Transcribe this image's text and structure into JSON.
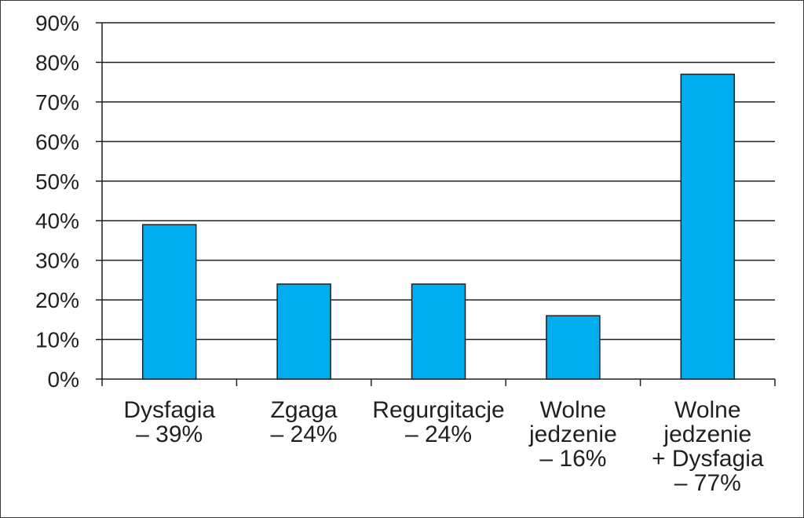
{
  "chart_data": {
    "type": "bar",
    "title": "",
    "xlabel": "",
    "ylabel": "",
    "ylim": [
      0,
      90
    ],
    "y_ticks": [
      "0%",
      "10%",
      "20%",
      "30%",
      "40%",
      "50%",
      "60%",
      "70%",
      "80%",
      "90%"
    ],
    "categories": [
      [
        "Dysfagia",
        "– 39%"
      ],
      [
        "Zgaga",
        "– 24%"
      ],
      [
        "Regurgitacje",
        "– 24%"
      ],
      [
        "Wolne",
        "jedzenie",
        "– 16%"
      ],
      [
        "Wolne",
        "jedzenie",
        "+ Dysfagia",
        "– 77%"
      ]
    ],
    "values": [
      39,
      24,
      24,
      16,
      77
    ],
    "grid": true,
    "legend": "none",
    "colors": {
      "bar": "#00aeef",
      "bar_edge": "#231f20",
      "grid": "#231f20",
      "axis": "#231f20"
    }
  }
}
